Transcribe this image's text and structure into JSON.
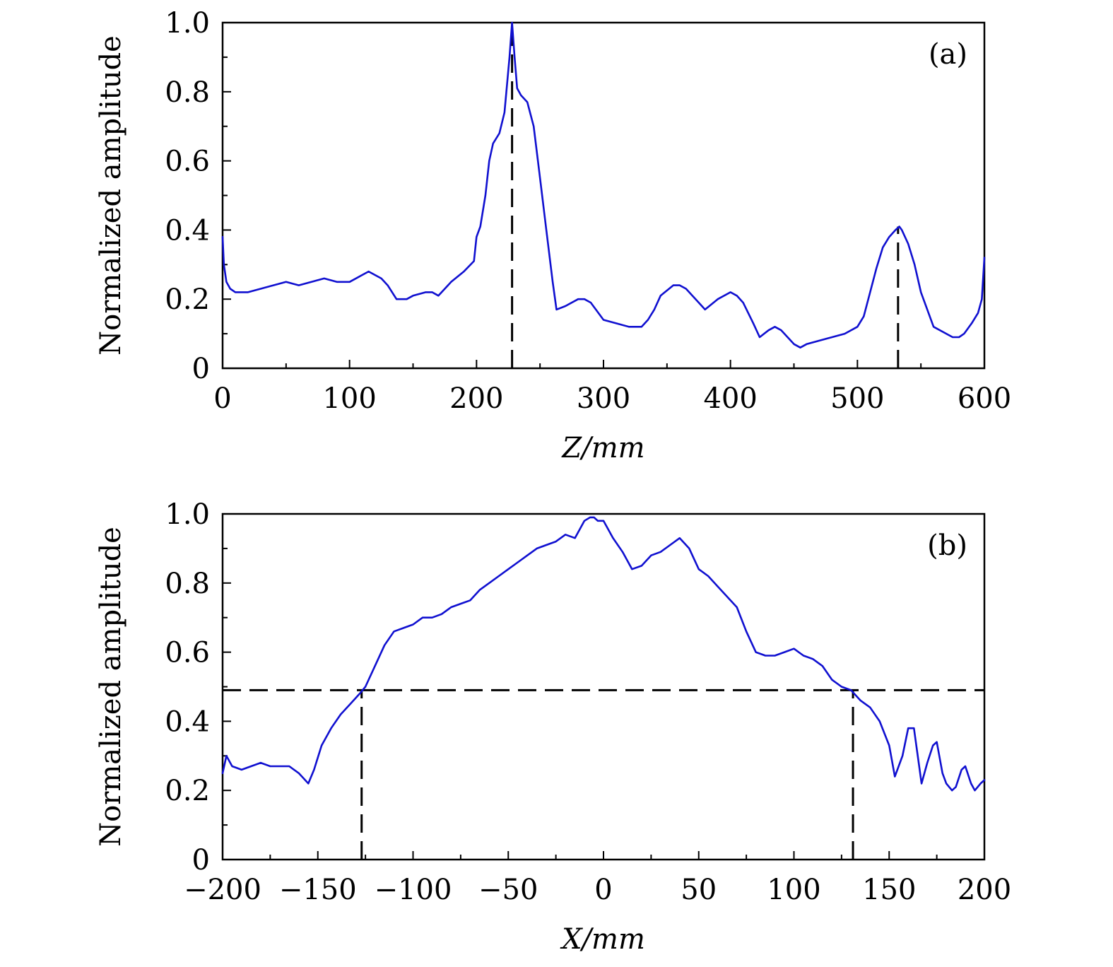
{
  "chart_data": [
    {
      "type": "line",
      "panel_label": "(a)",
      "xlabel": "Z/mm",
      "ylabel": "Normalized amplitude",
      "xlim": [
        0,
        600
      ],
      "ylim": [
        0,
        1.0
      ],
      "x_tick_labels": [
        "0",
        "100",
        "200",
        "300",
        "400",
        "500",
        "600"
      ],
      "y_tick_labels": [
        "0",
        "0.2",
        "0.4",
        "0.6",
        "0.8",
        "1.0"
      ],
      "series_color": "#1010d0",
      "series": [
        {
          "x": [
            0,
            1,
            3,
            6,
            10,
            15,
            20,
            30,
            40,
            50,
            60,
            70,
            80,
            90,
            100,
            110,
            115,
            120,
            125,
            130,
            137,
            140,
            145,
            150,
            160,
            165,
            170,
            180,
            190,
            198,
            200,
            203,
            207,
            210,
            213,
            218,
            222,
            226,
            228,
            230,
            232,
            235,
            240,
            245,
            250,
            255,
            260,
            263,
            270,
            280,
            285,
            290,
            300,
            310,
            320,
            330,
            335,
            340,
            345,
            355,
            360,
            365,
            375,
            380,
            390,
            400,
            405,
            410,
            418,
            423,
            430,
            435,
            440,
            450,
            455,
            460,
            470,
            480,
            490,
            500,
            505,
            510,
            515,
            520,
            525,
            530,
            533,
            535,
            540,
            545,
            550,
            560,
            570,
            575,
            580,
            584,
            590,
            595,
            598,
            600
          ],
          "y": [
            0.38,
            0.3,
            0.25,
            0.23,
            0.22,
            0.22,
            0.22,
            0.23,
            0.24,
            0.25,
            0.24,
            0.25,
            0.26,
            0.25,
            0.25,
            0.27,
            0.28,
            0.27,
            0.26,
            0.24,
            0.2,
            0.2,
            0.2,
            0.21,
            0.22,
            0.22,
            0.21,
            0.25,
            0.28,
            0.31,
            0.38,
            0.41,
            0.5,
            0.6,
            0.65,
            0.68,
            0.74,
            0.9,
            1.0,
            0.9,
            0.81,
            0.79,
            0.77,
            0.7,
            0.55,
            0.4,
            0.25,
            0.17,
            0.18,
            0.2,
            0.2,
            0.19,
            0.14,
            0.13,
            0.12,
            0.12,
            0.14,
            0.17,
            0.21,
            0.24,
            0.24,
            0.23,
            0.19,
            0.17,
            0.2,
            0.22,
            0.21,
            0.19,
            0.13,
            0.09,
            0.11,
            0.12,
            0.11,
            0.07,
            0.06,
            0.07,
            0.08,
            0.09,
            0.1,
            0.12,
            0.15,
            0.22,
            0.29,
            0.35,
            0.38,
            0.4,
            0.41,
            0.4,
            0.36,
            0.3,
            0.22,
            0.12,
            0.1,
            0.09,
            0.09,
            0.1,
            0.13,
            0.16,
            0.2,
            0.32
          ]
        }
      ],
      "guides": [
        {
          "orientation": "vertical",
          "x": 228,
          "y_from": 0,
          "y_to": 1.0
        },
        {
          "orientation": "vertical",
          "x": 532,
          "y_from": 0,
          "y_to": 0.41
        }
      ]
    },
    {
      "type": "line",
      "panel_label": "(b)",
      "xlabel": "X/mm",
      "ylabel": "Normalized amplitude",
      "xlim": [
        -200,
        200
      ],
      "ylim": [
        0,
        1.0
      ],
      "x_tick_labels": [
        "−200",
        "−150",
        "−100",
        "−50",
        "0",
        "50",
        "100",
        "150",
        "200"
      ],
      "y_tick_labels": [
        "0",
        "0.2",
        "0.4",
        "0.6",
        "0.8",
        "1.0"
      ],
      "series_color": "#1010d0",
      "series": [
        {
          "x": [
            -200,
            -198,
            -195,
            -190,
            -185,
            -180,
            -175,
            -170,
            -165,
            -160,
            -155,
            -152,
            -148,
            -143,
            -138,
            -133,
            -128,
            -125,
            -120,
            -115,
            -110,
            -105,
            -100,
            -95,
            -90,
            -85,
            -80,
            -75,
            -70,
            -65,
            -60,
            -55,
            -50,
            -45,
            -40,
            -35,
            -30,
            -25,
            -20,
            -15,
            -10,
            -7,
            -5,
            -3,
            0,
            5,
            10,
            15,
            20,
            25,
            30,
            35,
            40,
            45,
            50,
            55,
            60,
            65,
            70,
            75,
            80,
            85,
            90,
            95,
            100,
            105,
            110,
            115,
            120,
            125,
            130,
            135,
            140,
            145,
            150,
            153,
            157,
            160,
            163,
            165,
            167,
            170,
            173,
            175,
            178,
            180,
            183,
            185,
            188,
            190,
            193,
            195,
            198,
            200
          ],
          "y": [
            0.25,
            0.3,
            0.27,
            0.26,
            0.27,
            0.28,
            0.27,
            0.27,
            0.27,
            0.25,
            0.22,
            0.26,
            0.33,
            0.38,
            0.42,
            0.45,
            0.48,
            0.5,
            0.56,
            0.62,
            0.66,
            0.67,
            0.68,
            0.7,
            0.7,
            0.71,
            0.73,
            0.74,
            0.75,
            0.78,
            0.8,
            0.82,
            0.84,
            0.86,
            0.88,
            0.9,
            0.91,
            0.92,
            0.94,
            0.93,
            0.98,
            0.99,
            0.99,
            0.98,
            0.98,
            0.93,
            0.89,
            0.84,
            0.85,
            0.88,
            0.89,
            0.91,
            0.93,
            0.9,
            0.84,
            0.82,
            0.79,
            0.76,
            0.73,
            0.66,
            0.6,
            0.59,
            0.59,
            0.6,
            0.61,
            0.59,
            0.58,
            0.56,
            0.52,
            0.5,
            0.49,
            0.46,
            0.44,
            0.4,
            0.33,
            0.24,
            0.3,
            0.38,
            0.38,
            0.3,
            0.22,
            0.28,
            0.33,
            0.34,
            0.25,
            0.22,
            0.2,
            0.21,
            0.26,
            0.27,
            0.22,
            0.2,
            0.22,
            0.23
          ]
        }
      ],
      "guides": [
        {
          "orientation": "horizontal",
          "y": 0.49,
          "x_from": -200,
          "x_to": 200
        },
        {
          "orientation": "vertical",
          "x": -127,
          "y_from": 0,
          "y_to": 0.49
        },
        {
          "orientation": "vertical",
          "x": 131,
          "y_from": 0,
          "y_to": 0.49
        }
      ]
    }
  ]
}
